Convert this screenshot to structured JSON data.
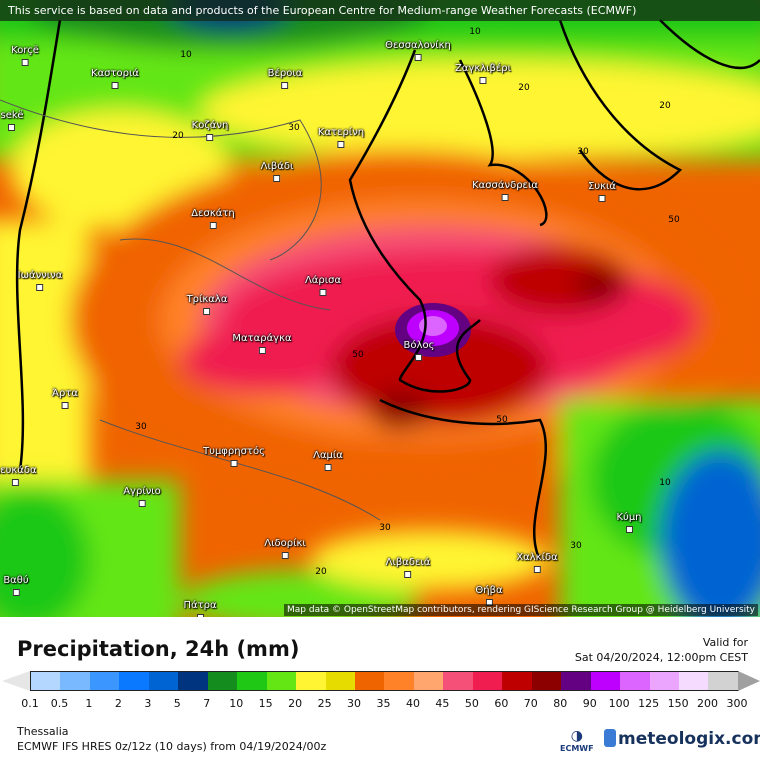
{
  "banner": "This service is based on data and products of the European Centre for Medium-range Weather Forecasts (ECMWF)",
  "attribution": "Map data © OpenStreetMap contributors, rendering GIScience Research Group @ Heidelberg University",
  "cities": [
    "Korçë",
    "Καστοριά",
    "Βέροια",
    "Θεσσαλονίκη",
    "Ζαγκλιβέρι",
    "sekë",
    "Κοζάνη",
    "Κατερίνη",
    "Λιβάδι",
    "Κασσάνδρεια",
    "Συκιά",
    "Δεσκάτη",
    "Ιωάννινα",
    "Λάρισα",
    "Τρίκαλα",
    "Ματαράγκα",
    "Βόλος",
    "Άρτα",
    "Τυμφρηστός",
    "Λαμία",
    "Λευκάδα",
    "Αγρίνιο",
    "Κύμη",
    "Λιδορίκι",
    "Χαλκίδα",
    "Λιβαδειά",
    "Θήβα",
    "Βαθύ",
    "Πάτρα"
  ],
  "contour_labels": [
    "10",
    "10",
    "20",
    "20",
    "20",
    "30",
    "30",
    "50",
    "50",
    "50",
    "30",
    "10",
    "30",
    "30",
    "20"
  ],
  "title": "Precipitation, 24h (mm)",
  "valid_label": "Valid for",
  "valid_time": "Sat 04/20/2024, 12:00pm CEST",
  "legend": {
    "colors": [
      "#b4d7ff",
      "#78b9ff",
      "#3c96ff",
      "#0a78ff",
      "#0064d2",
      "#00347f",
      "#148c1e",
      "#1ec814",
      "#64e614",
      "#fff532",
      "#e6dc00",
      "#f06400",
      "#ff8228",
      "#ffa56e",
      "#f55078",
      "#f01e50",
      "#be0000",
      "#8c0000",
      "#640082",
      "#be00ff",
      "#dc64ff",
      "#eba5ff",
      "#f5dcff",
      "#d2d2d2"
    ],
    "ticks": [
      "0.1",
      "0.5",
      "1",
      "2",
      "3",
      "5",
      "7",
      "10",
      "15",
      "20",
      "25",
      "30",
      "35",
      "40",
      "45",
      "50",
      "60",
      "70",
      "80",
      "90",
      "100",
      "125",
      "150",
      "200",
      "300"
    ]
  },
  "region": "Thessalia",
  "model": "ECMWF IFS HRES 0z/12z (10 days) from  04/19/2024/00z",
  "ecmwf_logo": "ECMWF",
  "brand": "meteologix.com"
}
